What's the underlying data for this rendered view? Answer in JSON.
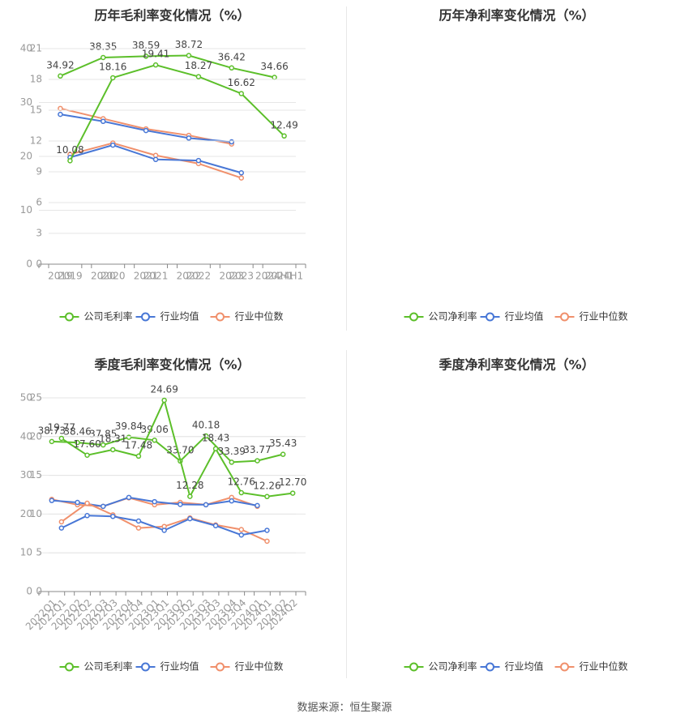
{
  "colors": {
    "company": "#5cbf2a",
    "avg": "#4877d6",
    "median": "#f0906c",
    "grid": "#e6e6e6",
    "axis": "#999999",
    "text": "#555555",
    "label": "#444444"
  },
  "footer": {
    "source": "数据来源：恒生聚源"
  },
  "chart_data": [
    {
      "type": "line",
      "title": "历年毛利率变化情况（%）",
      "categories": [
        "2019",
        "2020",
        "2021",
        "2022",
        "2023",
        "2024H1"
      ],
      "ylim": [
        0,
        40
      ],
      "yticks": [
        0,
        10,
        20,
        30,
        40
      ],
      "rotate_x": false,
      "grid": true,
      "legend_position": "bottom",
      "series": [
        {
          "name": "公司毛利率",
          "values": [
            34.92,
            38.35,
            38.59,
            38.72,
            36.42,
            34.66
          ],
          "labels": [
            "34.92",
            "38.35",
            "38.59",
            "38.72",
            "36.42",
            "34.66"
          ]
        },
        {
          "name": "行业均值",
          "values": [
            27.8,
            26.5,
            24.8,
            23.4,
            22.7,
            null
          ]
        },
        {
          "name": "行业中位数",
          "values": [
            28.9,
            27.0,
            25.1,
            23.9,
            22.3,
            null
          ]
        }
      ]
    },
    {
      "type": "line",
      "title": "历年净利率变化情况（%）",
      "categories": [
        "2019",
        "2020",
        "2021",
        "2022",
        "2023",
        "2024H1"
      ],
      "ylim": [
        0,
        21
      ],
      "yticks": [
        0,
        3,
        6,
        9,
        12,
        15,
        18,
        21
      ],
      "rotate_x": false,
      "grid": true,
      "legend_position": "bottom",
      "series": [
        {
          "name": "公司净利率",
          "values": [
            10.08,
            18.16,
            19.41,
            18.27,
            16.62,
            12.49
          ],
          "labels": [
            "10.08",
            "18.16",
            "19.41",
            "18.27",
            "16.62",
            "12.49"
          ]
        },
        {
          "name": "行业均值",
          "values": [
            10.4,
            11.6,
            10.2,
            10.1,
            8.9,
            null
          ]
        },
        {
          "name": "行业中位数",
          "values": [
            10.7,
            11.8,
            10.6,
            9.8,
            8.4,
            null
          ]
        }
      ]
    },
    {
      "type": "line",
      "title": "季度毛利率变化情况（%）",
      "categories": [
        "2022Q1",
        "2022Q2",
        "2022Q3",
        "2022Q4",
        "2023Q1",
        "2023Q2",
        "2023Q3",
        "2023Q4",
        "2024Q1",
        "2024Q2"
      ],
      "ylim": [
        0,
        50
      ],
      "yticks": [
        0,
        10,
        20,
        30,
        40,
        50
      ],
      "rotate_x": true,
      "grid": true,
      "legend_position": "bottom",
      "series": [
        {
          "name": "公司毛利率",
          "values": [
            38.73,
            38.46,
            37.85,
            39.84,
            39.06,
            33.7,
            40.18,
            33.39,
            33.77,
            35.43
          ],
          "labels": [
            "38.73",
            "38.46",
            "37.85",
            "39.84",
            "39.06",
            "33.70",
            "40.18",
            "33.39",
            "33.77",
            "35.43"
          ]
        },
        {
          "name": "行业均值",
          "values": [
            23.5,
            23.0,
            22.0,
            24.3,
            23.2,
            22.5,
            22.4,
            23.4,
            22.2,
            null
          ]
        },
        {
          "name": "行业中位数",
          "values": [
            23.8,
            22.4,
            22.0,
            24.2,
            22.4,
            23.0,
            22.4,
            24.3,
            22.0,
            null
          ]
        }
      ]
    },
    {
      "type": "line",
      "title": "季度净利率变化情况（%）",
      "categories": [
        "2022Q1",
        "2022Q2",
        "2022Q3",
        "2022Q4",
        "2023Q1",
        "2023Q2",
        "2023Q3",
        "2023Q4",
        "2024Q1",
        "2024Q2"
      ],
      "ylim": [
        0,
        25
      ],
      "yticks": [
        0,
        5,
        10,
        15,
        20,
        25
      ],
      "rotate_x": true,
      "grid": true,
      "legend_position": "bottom",
      "series": [
        {
          "name": "公司净利率",
          "values": [
            19.77,
            17.6,
            18.31,
            17.48,
            24.69,
            12.28,
            18.43,
            12.76,
            12.26,
            12.7
          ],
          "labels": [
            "19.77",
            "17.60",
            "18.31",
            "17.48",
            "24.69",
            "12.28",
            "18.43",
            "12.76",
            "12.26",
            "12.70"
          ]
        },
        {
          "name": "行业均值",
          "values": [
            8.2,
            9.8,
            9.7,
            9.1,
            7.9,
            9.4,
            8.5,
            7.3,
            7.9,
            null
          ]
        },
        {
          "name": "行业中位数",
          "values": [
            9.0,
            11.4,
            9.9,
            8.2,
            8.4,
            9.5,
            8.6,
            8.0,
            6.5,
            null
          ]
        }
      ]
    }
  ]
}
